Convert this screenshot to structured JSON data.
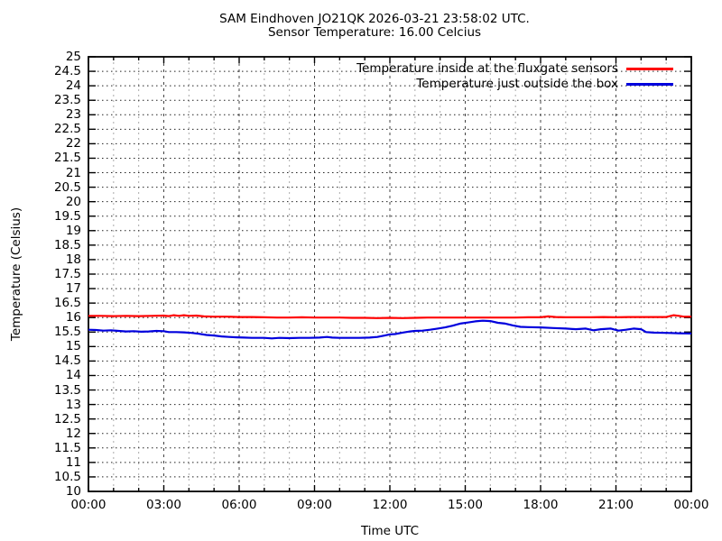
{
  "header": {
    "title_line1": "SAM Eindhoven JO21QK 2026-03-21 23:58:02 UTC.",
    "title_line2": "Sensor Temperature: 16.00 Celcius"
  },
  "colors": {
    "background": "#ffffff",
    "axis": "#000000",
    "grid_dot_horizontal": "#222222",
    "grid_major_vertical": "#444444",
    "grid_minor_vertical": "#aaaaaa",
    "series_inside": "#ff0000",
    "series_outside": "#0000dd"
  },
  "chart_data": {
    "type": "line",
    "title": "SAM Eindhoven JO21QK 2026-03-21 23:58:02 UTC.",
    "subtitle": "Sensor Temperature: 16.00 Celcius",
    "xlabel": "Time UTC",
    "ylabel": "Temperature (Celsius)",
    "xlim": [
      0,
      24
    ],
    "ylim": [
      10,
      25
    ],
    "y_tick_step": 0.5,
    "y_tick_labels": [
      "10",
      "10.5",
      "11",
      "11.5",
      "12",
      "12.5",
      "13",
      "13.5",
      "14",
      "14.5",
      "15",
      "15.5",
      "16",
      "16.5",
      "17",
      "17.5",
      "18",
      "18.5",
      "19",
      "19.5",
      "20",
      "20.5",
      "21",
      "21.5",
      "22",
      "22.5",
      "23",
      "23.5",
      "24",
      "24.5",
      "25"
    ],
    "x_tick_hours": [
      0,
      3,
      6,
      9,
      12,
      15,
      18,
      21,
      24
    ],
    "x_tick_labels": [
      "00:00",
      "03:00",
      "06:00",
      "09:00",
      "12:00",
      "15:00",
      "18:00",
      "21:00",
      "00:00"
    ],
    "x_minor_tick_every_hours": 1,
    "grid": "horizontal dotted every 0.5; vertical dashed every hour, darker every 3 hours",
    "legend_position": "top-right-inside",
    "series": [
      {
        "name": "Temperature inside at the fluxgate sensors",
        "color": "#ff0000",
        "points": [
          [
            0,
            16.06
          ],
          [
            0.5,
            16.06
          ],
          [
            1,
            16.05
          ],
          [
            1.5,
            16.06
          ],
          [
            2,
            16.05
          ],
          [
            2.5,
            16.06
          ],
          [
            3,
            16.07
          ],
          [
            3.2,
            16.05
          ],
          [
            3.4,
            16.08
          ],
          [
            3.6,
            16.06
          ],
          [
            3.8,
            16.08
          ],
          [
            4,
            16.06
          ],
          [
            4.3,
            16.07
          ],
          [
            4.6,
            16.04
          ],
          [
            5,
            16.03
          ],
          [
            5.5,
            16.03
          ],
          [
            6,
            16.02
          ],
          [
            6.5,
            16.02
          ],
          [
            7,
            16.01
          ],
          [
            7.5,
            16.0
          ],
          [
            8,
            16.0
          ],
          [
            8.5,
            16.01
          ],
          [
            9,
            16.0
          ],
          [
            9.5,
            16.0
          ],
          [
            10,
            16.0
          ],
          [
            10.5,
            15.99
          ],
          [
            11,
            15.99
          ],
          [
            11.5,
            15.98
          ],
          [
            12,
            15.99
          ],
          [
            12.5,
            15.98
          ],
          [
            13,
            15.99
          ],
          [
            13.5,
            16.0
          ],
          [
            14,
            16.0
          ],
          [
            15,
            16.0
          ],
          [
            16,
            16.0
          ],
          [
            17,
            16.0
          ],
          [
            17.5,
            16.01
          ],
          [
            18,
            16.01
          ],
          [
            18.3,
            16.04
          ],
          [
            18.6,
            16.02
          ],
          [
            19,
            16.01
          ],
          [
            19.5,
            16.01
          ],
          [
            20,
            16.01
          ],
          [
            20.5,
            16.02
          ],
          [
            21,
            16.01
          ],
          [
            21.5,
            16.02
          ],
          [
            22,
            16.02
          ],
          [
            22.5,
            16.02
          ],
          [
            23,
            16.02
          ],
          [
            23.3,
            16.08
          ],
          [
            23.5,
            16.06
          ],
          [
            23.7,
            16.03
          ],
          [
            24,
            16.03
          ]
        ]
      },
      {
        "name": "Temperature just outside the box",
        "color": "#0000dd",
        "points": [
          [
            0,
            15.58
          ],
          [
            0.3,
            15.57
          ],
          [
            0.6,
            15.55
          ],
          [
            0.9,
            15.56
          ],
          [
            1.2,
            15.54
          ],
          [
            1.5,
            15.52
          ],
          [
            1.8,
            15.53
          ],
          [
            2.1,
            15.51
          ],
          [
            2.4,
            15.52
          ],
          [
            2.7,
            15.54
          ],
          [
            3,
            15.53
          ],
          [
            3.2,
            15.5
          ],
          [
            3.5,
            15.5
          ],
          [
            3.8,
            15.49
          ],
          [
            4.1,
            15.47
          ],
          [
            4.4,
            15.44
          ],
          [
            4.7,
            15.4
          ],
          [
            5,
            15.38
          ],
          [
            5.3,
            15.35
          ],
          [
            5.6,
            15.33
          ],
          [
            5.9,
            15.32
          ],
          [
            6.2,
            15.31
          ],
          [
            6.5,
            15.3
          ],
          [
            7,
            15.3
          ],
          [
            7.3,
            15.28
          ],
          [
            7.6,
            15.3
          ],
          [
            8,
            15.29
          ],
          [
            8.4,
            15.3
          ],
          [
            8.8,
            15.3
          ],
          [
            9.2,
            15.31
          ],
          [
            9.5,
            15.33
          ],
          [
            9.7,
            15.31
          ],
          [
            10,
            15.3
          ],
          [
            10.4,
            15.3
          ],
          [
            10.8,
            15.3
          ],
          [
            11.2,
            15.31
          ],
          [
            11.5,
            15.33
          ],
          [
            11.8,
            15.38
          ],
          [
            12,
            15.42
          ],
          [
            12.2,
            15.43
          ],
          [
            12.5,
            15.48
          ],
          [
            12.8,
            15.52
          ],
          [
            13,
            15.54
          ],
          [
            13.3,
            15.55
          ],
          [
            13.6,
            15.58
          ],
          [
            13.9,
            15.62
          ],
          [
            14.2,
            15.66
          ],
          [
            14.5,
            15.72
          ],
          [
            14.8,
            15.79
          ],
          [
            15.1,
            15.83
          ],
          [
            15.4,
            15.87
          ],
          [
            15.7,
            15.89
          ],
          [
            16,
            15.88
          ],
          [
            16.3,
            15.82
          ],
          [
            16.6,
            15.79
          ],
          [
            16.9,
            15.73
          ],
          [
            17.2,
            15.68
          ],
          [
            17.5,
            15.67
          ],
          [
            18,
            15.66
          ],
          [
            18.5,
            15.64
          ],
          [
            19,
            15.62
          ],
          [
            19.4,
            15.6
          ],
          [
            19.8,
            15.62
          ],
          [
            20.1,
            15.56
          ],
          [
            20.4,
            15.6
          ],
          [
            20.8,
            15.62
          ],
          [
            21.1,
            15.55
          ],
          [
            21.4,
            15.58
          ],
          [
            21.7,
            15.62
          ],
          [
            22,
            15.6
          ],
          [
            22.2,
            15.5
          ],
          [
            22.5,
            15.48
          ],
          [
            23,
            15.47
          ],
          [
            23.5,
            15.46
          ],
          [
            24,
            15.45
          ]
        ]
      }
    ]
  }
}
